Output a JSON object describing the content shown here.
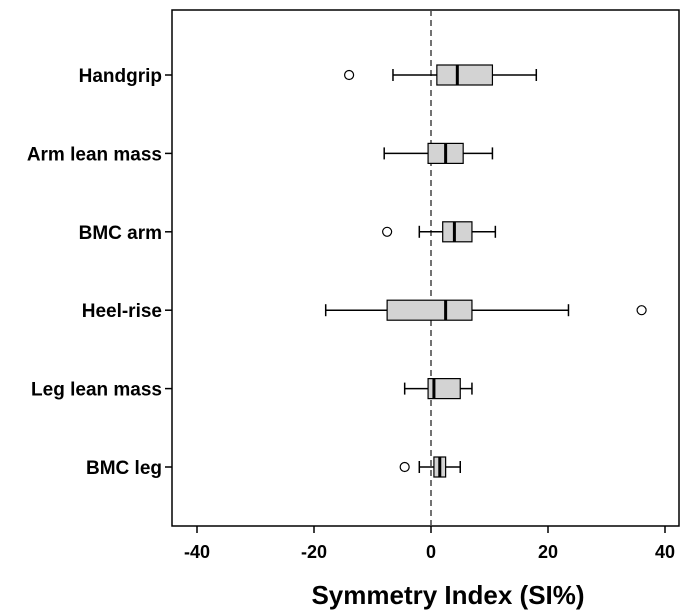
{
  "chart_data": {
    "type": "boxplot",
    "orientation": "horizontal",
    "title": "",
    "xlabel": "Symmetry Index (SI%)",
    "ylabel": "",
    "xlim": [
      -44,
      42
    ],
    "xticks": [
      -40,
      -20,
      0,
      20,
      40
    ],
    "xtick_labels": [
      "-40",
      "-20",
      "0",
      "20",
      "40"
    ],
    "reference_line": {
      "x": 0,
      "style": "dashed"
    },
    "grid": false,
    "legend": "none",
    "box_fill": "#d3d3d3",
    "categories": [
      "Handgrip",
      "Arm lean mass",
      "BMC arm",
      "Heel-rise",
      "Leg lean mass",
      "BMC leg"
    ],
    "boxes": [
      {
        "label": "Handgrip",
        "whisker_low": -6.5,
        "q1": 1.0,
        "median": 4.5,
        "q3": 10.5,
        "whisker_high": 18.0,
        "outliers": [
          -14.0
        ]
      },
      {
        "label": "Arm lean mass",
        "whisker_low": -8.0,
        "q1": -0.5,
        "median": 2.5,
        "q3": 5.5,
        "whisker_high": 10.5,
        "outliers": []
      },
      {
        "label": "BMC arm",
        "whisker_low": -2.0,
        "q1": 2.0,
        "median": 4.0,
        "q3": 7.0,
        "whisker_high": 11.0,
        "outliers": [
          -7.5
        ]
      },
      {
        "label": "Heel-rise",
        "whisker_low": -18.0,
        "q1": -7.5,
        "median": 2.5,
        "q3": 7.0,
        "whisker_high": 23.5,
        "outliers": [
          36.0
        ]
      },
      {
        "label": "Leg lean mass",
        "whisker_low": -4.5,
        "q1": -0.5,
        "median": 0.5,
        "q3": 5.0,
        "whisker_high": 7.0,
        "outliers": []
      },
      {
        "label": "BMC leg",
        "whisker_low": -2.0,
        "q1": 0.5,
        "median": 1.5,
        "q3": 2.5,
        "whisker_high": 5.0,
        "outliers": [
          -4.5
        ]
      }
    ]
  }
}
